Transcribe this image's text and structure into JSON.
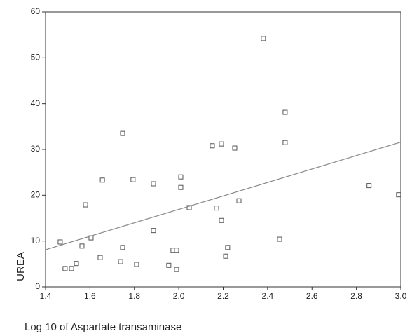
{
  "chart_data": {
    "type": "scatter",
    "x_label": "Log 10 of Aspartate transaminase",
    "y_label": "UREA",
    "xlim": [
      1.4,
      3.0
    ],
    "ylim": [
      0,
      60
    ],
    "xticks": [
      1.4,
      1.6,
      1.8,
      {
        "value": 2.0,
        "label": "2.0"
      },
      2.2,
      2.4,
      2.6,
      2.8,
      {
        "value": 3.0,
        "label": "3.0"
      }
    ],
    "yticks": [
      0,
      10,
      20,
      30,
      40,
      50,
      60
    ],
    "marker_color": "#555555",
    "x": [
      1.466,
      1.488,
      1.517,
      1.539,
      1.564,
      1.58,
      1.605,
      1.646,
      1.656,
      1.738,
      1.747,
      1.747,
      1.794,
      1.81,
      1.886,
      1.886,
      1.955,
      1.974,
      1.99,
      1.99,
      2.009,
      2.009,
      2.047,
      2.151,
      2.17,
      2.192,
      2.192,
      2.211,
      2.22,
      2.252,
      2.271,
      2.381,
      2.454,
      2.479,
      2.479,
      2.857,
      2.99
    ],
    "values": [
      9.8,
      4.0,
      4.0,
      5.1,
      8.9,
      17.9,
      10.7,
      6.4,
      23.3,
      5.5,
      8.6,
      33.5,
      23.4,
      4.9,
      22.5,
      12.3,
      4.7,
      8.0,
      8.0,
      3.8,
      24.0,
      21.7,
      17.3,
      30.8,
      17.2,
      31.2,
      14.5,
      6.7,
      8.6,
      30.3,
      18.8,
      54.2,
      10.4,
      38.1,
      31.5,
      22.1,
      20.1
    ],
    "fit_line": {
      "x": [
        1.4,
        3.0
      ],
      "values": [
        8.1,
        31.6
      ],
      "color": "#888888"
    }
  }
}
